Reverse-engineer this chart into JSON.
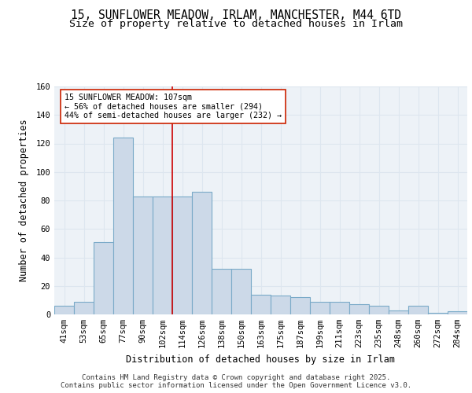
{
  "title_line1": "15, SUNFLOWER MEADOW, IRLAM, MANCHESTER, M44 6TD",
  "title_line2": "Size of property relative to detached houses in Irlam",
  "xlabel": "Distribution of detached houses by size in Irlam",
  "ylabel": "Number of detached properties",
  "bar_color": "#ccd9e8",
  "bar_edge_color": "#7aaac8",
  "categories": [
    "41sqm",
    "53sqm",
    "65sqm",
    "77sqm",
    "90sqm",
    "102sqm",
    "114sqm",
    "126sqm",
    "138sqm",
    "150sqm",
    "163sqm",
    "175sqm",
    "187sqm",
    "199sqm",
    "211sqm",
    "223sqm",
    "235sqm",
    "248sqm",
    "260sqm",
    "272sqm",
    "284sqm"
  ],
  "values": [
    6,
    9,
    51,
    124,
    83,
    83,
    83,
    86,
    32,
    32,
    14,
    13,
    12,
    9,
    9,
    7,
    6,
    3,
    6,
    1,
    2
  ],
  "ylim": [
    0,
    160
  ],
  "yticks": [
    0,
    20,
    40,
    60,
    80,
    100,
    120,
    140,
    160
  ],
  "annotation_text": "15 SUNFLOWER MEADOW: 107sqm\n← 56% of detached houses are smaller (294)\n44% of semi-detached houses are larger (232) →",
  "vline_x": 5.5,
  "vline_color": "#cc0000",
  "background_color": "#edf2f7",
  "grid_color": "#dde6ef",
  "footer_text": "Contains HM Land Registry data © Crown copyright and database right 2025.\nContains public sector information licensed under the Open Government Licence v3.0.",
  "title_fontsize": 10.5,
  "subtitle_fontsize": 9.5,
  "axis_label_fontsize": 8.5,
  "tick_fontsize": 7.5,
  "footer_fontsize": 6.5
}
